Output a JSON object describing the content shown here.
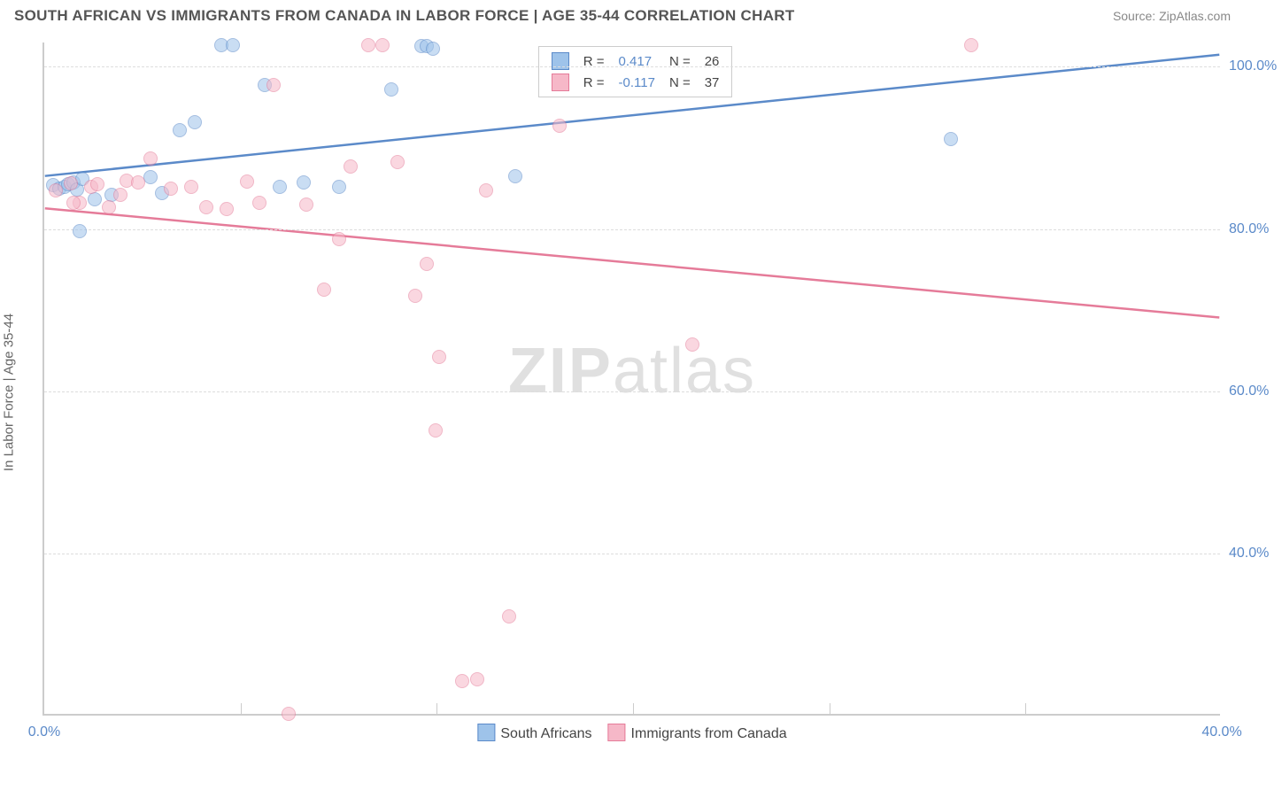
{
  "header": {
    "title": "SOUTH AFRICAN VS IMMIGRANTS FROM CANADA IN LABOR FORCE | AGE 35-44 CORRELATION CHART",
    "source": "Source: ZipAtlas.com"
  },
  "watermark": {
    "part1": "ZIP",
    "part2": "atlas"
  },
  "axes": {
    "ylabel": "In Labor Force | Age 35-44",
    "x": {
      "min": 0,
      "max": 40,
      "ticks": [
        0,
        40
      ],
      "tick_labels": [
        "0.0%",
        "40.0%"
      ],
      "minor_ticks": [
        6.67,
        13.33,
        20,
        26.67,
        33.33
      ]
    },
    "y": {
      "min": 20,
      "max": 103,
      "ticks": [
        40,
        60,
        80,
        100
      ],
      "tick_labels": [
        "40.0%",
        "60.0%",
        "80.0%",
        "100.0%"
      ]
    }
  },
  "style": {
    "plot_bg": "#ffffff",
    "grid_color": "#dddddd",
    "axis_color": "#cccccc",
    "tick_color": "#5b8ac9",
    "label_color": "#666666",
    "title_color": "#555555",
    "source_color": "#888888",
    "marker_radius": 8,
    "marker_opacity": 0.55,
    "line_width": 2.5
  },
  "series": [
    {
      "id": "south_africans",
      "label": "South Africans",
      "color_fill": "#9ec3ea",
      "color_stroke": "#5b8ac9",
      "r": "0.417",
      "n": "26",
      "trend": {
        "x1": 0,
        "y1": 86.5,
        "x2": 40,
        "y2": 101.5
      },
      "points": [
        [
          0.3,
          85.2
        ],
        [
          0.5,
          84.8
        ],
        [
          0.7,
          85
        ],
        [
          0.8,
          85.3
        ],
        [
          1.0,
          85.5
        ],
        [
          1.1,
          84.6
        ],
        [
          1.3,
          86.0
        ],
        [
          1.2,
          79.5
        ],
        [
          1.7,
          83.5
        ],
        [
          2.3,
          84.0
        ],
        [
          3.6,
          86.2
        ],
        [
          4.0,
          84.2
        ],
        [
          4.6,
          92.0
        ],
        [
          5.1,
          93.0
        ],
        [
          6.0,
          102.5
        ],
        [
          6.4,
          102.5
        ],
        [
          7.5,
          97.5
        ],
        [
          8.0,
          85.0
        ],
        [
          8.8,
          85.5
        ],
        [
          10.0,
          85.0
        ],
        [
          11.8,
          97.0
        ],
        [
          12.8,
          102.3
        ],
        [
          13.0,
          102.3
        ],
        [
          16.0,
          86.3
        ],
        [
          30.8,
          90.9
        ],
        [
          13.2,
          102.0
        ]
      ]
    },
    {
      "id": "immigrants_canada",
      "label": "Immigrants from Canada",
      "color_fill": "#f6b8c8",
      "color_stroke": "#e57b99",
      "r": "-0.117",
      "n": "37",
      "trend": {
        "x1": 0,
        "y1": 82.5,
        "x2": 40,
        "y2": 69.0
      },
      "points": [
        [
          0.4,
          84.5
        ],
        [
          0.9,
          85.4
        ],
        [
          1.2,
          83.0
        ],
        [
          1.6,
          85.0
        ],
        [
          1.8,
          85.3
        ],
        [
          2.2,
          82.5
        ],
        [
          2.6,
          84.0
        ],
        [
          2.8,
          85.7
        ],
        [
          3.2,
          85.5
        ],
        [
          3.6,
          88.5
        ],
        [
          4.3,
          84.8
        ],
        [
          5.0,
          85.0
        ],
        [
          5.5,
          82.5
        ],
        [
          6.2,
          82.3
        ],
        [
          6.9,
          85.6
        ],
        [
          7.3,
          83.0
        ],
        [
          7.8,
          97.5
        ],
        [
          8.3,
          20.0
        ],
        [
          8.9,
          82.8
        ],
        [
          9.5,
          72.3
        ],
        [
          10.0,
          78.5
        ],
        [
          10.4,
          87.5
        ],
        [
          11.0,
          102.5
        ],
        [
          11.5,
          102.5
        ],
        [
          12.0,
          88.0
        ],
        [
          12.6,
          71.5
        ],
        [
          13.0,
          75.5
        ],
        [
          13.3,
          55.0
        ],
        [
          13.4,
          64.0
        ],
        [
          14.2,
          24.0
        ],
        [
          14.7,
          24.3
        ],
        [
          15.0,
          84.5
        ],
        [
          15.8,
          32.0
        ],
        [
          17.5,
          92.5
        ],
        [
          22.0,
          65.5
        ],
        [
          31.5,
          102.5
        ],
        [
          1.0,
          83.0
        ]
      ]
    }
  ],
  "top_legend_labels": {
    "r": "R =",
    "n": "N ="
  },
  "bottom_legend": {
    "items": [
      {
        "swatch_fill": "#9ec3ea",
        "swatch_stroke": "#5b8ac9",
        "label": "South Africans"
      },
      {
        "swatch_fill": "#f6b8c8",
        "swatch_stroke": "#e57b99",
        "label": "Immigrants from Canada"
      }
    ]
  }
}
